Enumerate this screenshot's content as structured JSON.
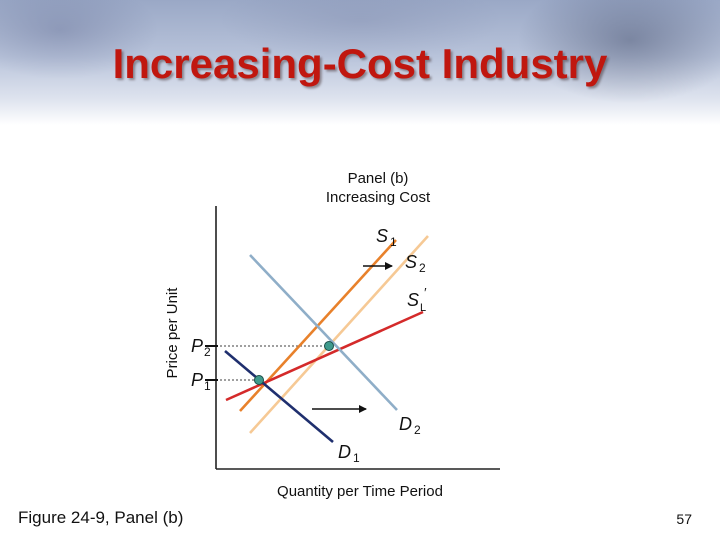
{
  "slide": {
    "title": "Increasing-Cost Industry",
    "caption": "Figure 24-9, Panel (b)",
    "slide_number": "57"
  },
  "panel": {
    "line1": "Panel (b)",
    "line2": "Increasing Cost"
  },
  "axes": {
    "ylabel": "Price per Unit",
    "xlabel": "Quantity per Time Period"
  },
  "curves": {
    "s1": {
      "base": "S",
      "sub": "1"
    },
    "s2": {
      "base": "S",
      "sub": "2"
    },
    "sl": {
      "base": "S",
      "sub": "L",
      "prime": "′"
    },
    "d1": {
      "base": "D",
      "sub": "1"
    },
    "d2": {
      "base": "D",
      "sub": "2"
    }
  },
  "prices": {
    "p1": {
      "base": "P",
      "sub": "1"
    },
    "p2": {
      "base": "P",
      "sub": "2"
    }
  },
  "colors": {
    "s1": "#e8812b",
    "s2": "#f6c995",
    "sl": "#d42a2a",
    "d1": "#1f2f6e",
    "d2": "#8faec8",
    "point": "#3f9a8c",
    "title": "#c0170f"
  }
}
